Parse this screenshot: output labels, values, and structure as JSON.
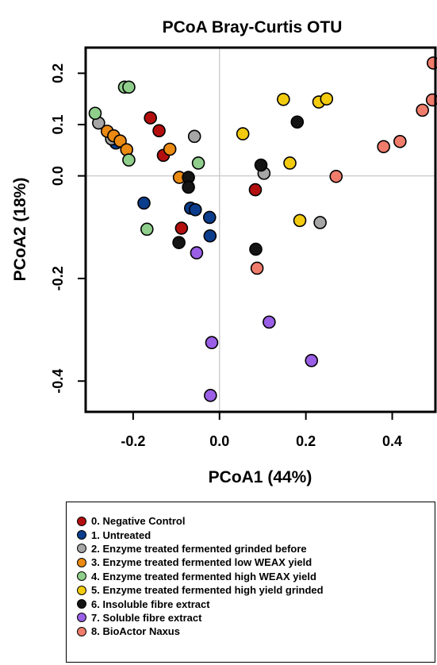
{
  "chart_data": {
    "type": "scatter",
    "title": "PCoA Bray-Curtis OTU",
    "xlabel": "PCoA1 (44%)",
    "ylabel": "PCoA2 (18%)",
    "xlim": [
      -0.31,
      0.5
    ],
    "ylim": [
      -0.46,
      0.25
    ],
    "x_ticks": [
      -0.2,
      0.0,
      0.2,
      0.4
    ],
    "x_tick_labels": [
      "-0.2",
      "0.0",
      "0.2",
      "0.4"
    ],
    "y_ticks": [
      0.2,
      0.1,
      0.0,
      -0.2,
      -0.4
    ],
    "y_tick_labels": [
      "0.2",
      "0.1",
      "0.0",
      "-0.2",
      "-0.4"
    ],
    "reference_lines": {
      "x": 0,
      "y": 0
    },
    "legend_position": "bottom",
    "series": [
      {
        "name": "0. Negative Control",
        "color": "#b30f0f",
        "points": [
          [
            -0.16,
            0.113
          ],
          [
            -0.14,
            0.088
          ],
          [
            -0.13,
            0.04
          ],
          [
            0.083,
            -0.027
          ],
          [
            -0.088,
            -0.102
          ]
        ]
      },
      {
        "name": "1. Untreated",
        "color": "#0b3d8c",
        "points": [
          [
            -0.24,
            0.064
          ],
          [
            -0.175,
            -0.053
          ],
          [
            -0.067,
            -0.063
          ],
          [
            -0.056,
            -0.066
          ],
          [
            -0.023,
            -0.081
          ],
          [
            -0.022,
            -0.117
          ]
        ]
      },
      {
        "name": "2. Enzyme treated fermented grinded before",
        "color": "#a6a6a6",
        "points": [
          [
            -0.28,
            0.103
          ],
          [
            -0.25,
            0.072
          ],
          [
            -0.058,
            0.077
          ],
          [
            0.103,
            0.005
          ],
          [
            0.233,
            -0.091
          ]
        ]
      },
      {
        "name": "3. Enzyme treated fermented low WEAX yield",
        "color": "#ea8a12",
        "points": [
          [
            -0.26,
            0.087
          ],
          [
            -0.245,
            0.078
          ],
          [
            -0.23,
            0.068
          ],
          [
            -0.215,
            0.051
          ],
          [
            -0.115,
            0.052
          ],
          [
            -0.093,
            -0.003
          ]
        ]
      },
      {
        "name": "4. Enzyme treated fermented high WEAX yield",
        "color": "#8fce8b",
        "points": [
          [
            -0.22,
            0.173
          ],
          [
            -0.21,
            0.173
          ],
          [
            -0.288,
            0.122
          ],
          [
            -0.21,
            0.031
          ],
          [
            -0.049,
            0.025
          ],
          [
            -0.168,
            -0.104
          ]
        ]
      },
      {
        "name": "5. Enzyme treated fermented high yield grinded",
        "color": "#f2cb0f",
        "points": [
          [
            0.148,
            0.149
          ],
          [
            0.23,
            0.144
          ],
          [
            0.248,
            0.15
          ],
          [
            0.054,
            0.082
          ],
          [
            0.163,
            0.025
          ],
          [
            0.186,
            -0.087
          ]
        ]
      },
      {
        "name": "6. Insoluble fibre extract",
        "color": "#141414",
        "points": [
          [
            0.18,
            0.105
          ],
          [
            0.096,
            0.021
          ],
          [
            -0.072,
            -0.003
          ],
          [
            -0.072,
            -0.022
          ],
          [
            -0.094,
            -0.13
          ],
          [
            0.084,
            -0.143
          ]
        ]
      },
      {
        "name": "7. Soluble fibre extract",
        "color": "#9a5fe6",
        "points": [
          [
            -0.053,
            -0.15
          ],
          [
            0.115,
            -0.285
          ],
          [
            -0.018,
            -0.325
          ],
          [
            0.213,
            -0.36
          ],
          [
            -0.021,
            -0.428
          ]
        ]
      },
      {
        "name": "8. BioActor Naxus",
        "color": "#f07c6c",
        "points": [
          [
            0.495,
            0.22
          ],
          [
            0.493,
            0.148
          ],
          [
            0.47,
            0.128
          ],
          [
            0.418,
            0.067
          ],
          [
            0.38,
            0.057
          ],
          [
            0.27,
            -0.001
          ],
          [
            0.087,
            -0.18
          ]
        ]
      }
    ]
  }
}
